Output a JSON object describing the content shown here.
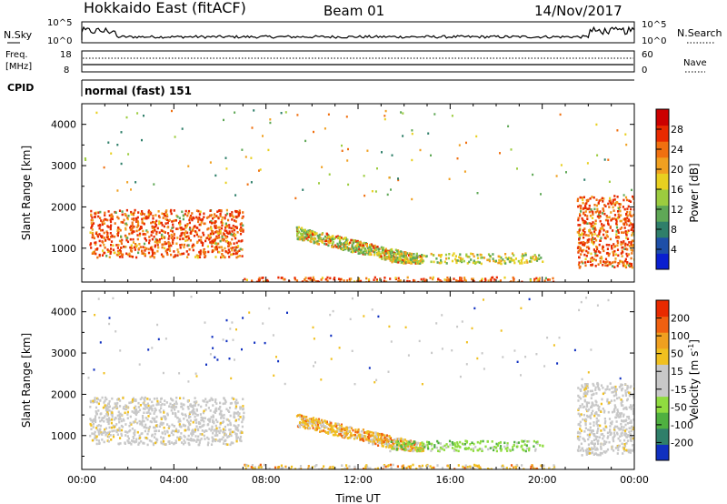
{
  "header": {
    "station": "Hokkaido East (fitACF)",
    "beam": "Beam 01",
    "date": "14/Nov/2017"
  },
  "strips": {
    "nsky_label": "N.Sky",
    "nsky_tick_top": "10^5",
    "nsky_tick_bottom": "10^0",
    "nsearch_label": "N.Search",
    "freq_label_1": "Freq.",
    "freq_label_2": "[MHz]",
    "freq_tick_top": "18",
    "freq_tick_bottom": "8",
    "nave_tick_top": "60",
    "nave_tick_bottom": "0",
    "nave_label": "Nave",
    "cpid_label": "CPID",
    "cpid_value": "normal (fast) 151"
  },
  "chart_data": [
    {
      "type": "heatmap",
      "panel": "power",
      "ylabel": "Slant Range [km]",
      "yticks": [
        "4000",
        "3000",
        "2000",
        "1000"
      ],
      "colorbar_label": "Power [dB]",
      "colorbar_ticks": [
        "28",
        "24",
        "20",
        "16",
        "12",
        "8",
        "4"
      ],
      "colors": [
        "#0a1fd0",
        "#1e4fa8",
        "#2f7f6a",
        "#5fa856",
        "#9ccc3f",
        "#e8d020",
        "#f0a020",
        "#f07010",
        "#e82a00",
        "#cc0000"
      ],
      "xlim": [
        "00:00",
        "24:00"
      ],
      "ylim": [
        180,
        4500
      ],
      "regions": [
        {
          "t": [
            0.3,
            7.0
          ],
          "r": [
            800,
            1950
          ],
          "level": "high"
        },
        {
          "t": [
            9.3,
            14.8
          ],
          "r": [
            650,
            1550
          ],
          "level": "mixed"
        },
        {
          "t": [
            13.2,
            20.0
          ],
          "r": [
            650,
            900
          ],
          "level": "medium"
        },
        {
          "t": [
            7.0,
            20.5
          ],
          "r": [
            200,
            320
          ],
          "level": "high"
        },
        {
          "t": [
            21.5,
            24.0
          ],
          "r": [
            550,
            2300
          ],
          "level": "high"
        }
      ]
    },
    {
      "type": "heatmap",
      "panel": "velocity",
      "ylabel": "Slant Range [km]",
      "yticks": [
        "4000",
        "3000",
        "2000",
        "1000"
      ],
      "colorbar_label": "Velocity [m s^-1]",
      "colorbar_ticks": [
        "200",
        "100",
        "50",
        "15",
        "-15",
        "-50",
        "-100",
        "-200"
      ],
      "colors": [
        "#1030c0",
        "#2f7f6a",
        "#4fb040",
        "#90dc40",
        "#c8c8c8",
        "#c8c8c8",
        "#f0c020",
        "#f0a020",
        "#f06010",
        "#e82a00"
      ],
      "xlim": [
        "00:00",
        "24:00"
      ],
      "ylim": [
        180,
        4500
      ],
      "xticks": [
        "00:00",
        "04:00",
        "08:00",
        "12:00",
        "16:00",
        "20:00",
        "00:00"
      ],
      "xlabel": "Time UT",
      "regions": [
        {
          "t": [
            0.3,
            7.0
          ],
          "r": [
            800,
            1950
          ],
          "level": "ground"
        },
        {
          "t": [
            9.3,
            14.8
          ],
          "r": [
            650,
            1550
          ],
          "level": "negative"
        },
        {
          "t": [
            13.2,
            20.0
          ],
          "r": [
            650,
            900
          ],
          "level": "positive"
        },
        {
          "t": [
            7.0,
            20.5
          ],
          "r": [
            200,
            320
          ],
          "level": "negative"
        },
        {
          "t": [
            21.5,
            24.0
          ],
          "r": [
            550,
            2300
          ],
          "level": "ground"
        }
      ]
    }
  ]
}
